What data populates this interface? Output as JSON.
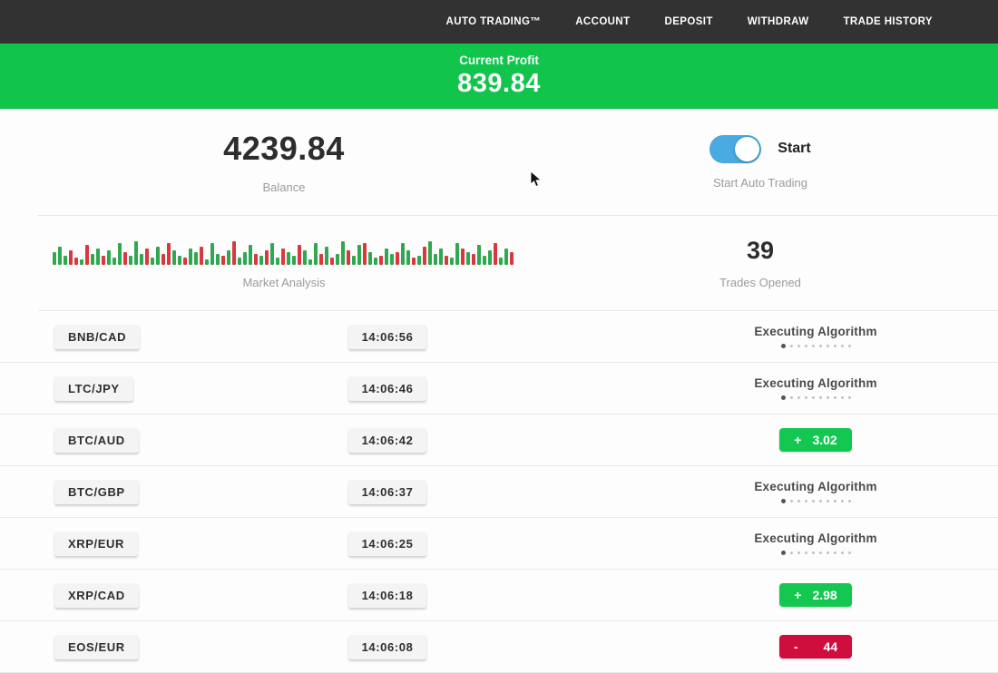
{
  "navbar": {
    "items": [
      {
        "label": "AUTO TRADING™"
      },
      {
        "label": "ACCOUNT"
      },
      {
        "label": "DEPOSIT"
      },
      {
        "label": "WITHDRAW"
      },
      {
        "label": "TRADE HISTORY"
      }
    ]
  },
  "profit_banner": {
    "label": "Current Profit",
    "value": "839.84"
  },
  "summary": {
    "balance_value": "4239.84",
    "balance_label": "Balance",
    "toggle_label": "Start",
    "toggle_caption": "Start Auto Trading",
    "toggle_state": "on",
    "market_label": "Market Analysis",
    "trades_value": "39",
    "trades_label": "Trades Opened"
  },
  "chart_data": {
    "type": "bar",
    "title": "Market Analysis",
    "note": "decorative candlestick strip, green=up red=down, heights in px",
    "bars": "g14,g20,g10,r16,r8,g6,r22,g12,g18,r10,g16,g8,g24,r14,g10,g26,g12,r18,g8,g20,r12,r24,g16,g10,r8,g18,g14,r20,g6,g24,g12,r10,g16,r26,g8,g14,g22,r12,g10,r16,g24,g8,r18,g14,g10,r22,g16,g6,g24,r12,g20,r8,g12,g26,r16,g10,g22,r24,g14,g8,r10,g18,g12,r14,g24,g16,r8,g10,r20,g26,g12,g18,r10,g8,g24,r18,g14,r12,g22,g10,g16,r24,g8,g18,r14"
  },
  "trades": [
    {
      "pair": "BNB/CAD",
      "time": "14:06:56",
      "status": "executing",
      "status_label": "Executing Algorithm"
    },
    {
      "pair": "LTC/JPY",
      "time": "14:06:46",
      "status": "executing",
      "status_label": "Executing Algorithm"
    },
    {
      "pair": "BTC/AUD",
      "time": "14:06:42",
      "status": "profit",
      "sign": "+",
      "value": "3.02"
    },
    {
      "pair": "BTC/GBP",
      "time": "14:06:37",
      "status": "executing",
      "status_label": "Executing Algorithm"
    },
    {
      "pair": "XRP/EUR",
      "time": "14:06:25",
      "status": "executing",
      "status_label": "Executing Algorithm"
    },
    {
      "pair": "XRP/CAD",
      "time": "14:06:18",
      "status": "profit",
      "sign": "+",
      "value": "2.98"
    },
    {
      "pair": "EOS/EUR",
      "time": "14:06:08",
      "status": "loss",
      "sign": "-",
      "value": "44"
    }
  ],
  "executing_dot_count": 10,
  "colors": {
    "navbar_bg": "#323232",
    "banner_green": "#10c44c",
    "profit_green": "#14c750",
    "loss_red": "#d00e3d",
    "toggle_blue": "#4aabe3"
  }
}
